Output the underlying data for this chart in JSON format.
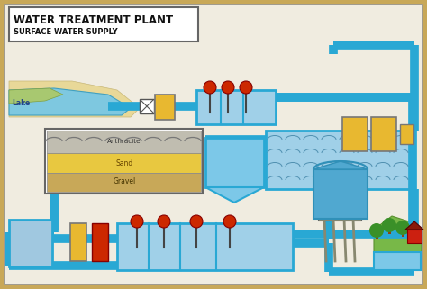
{
  "title": "WATER TREATMENT PLANT",
  "subtitle": "SURFACE WATER SUPPLY",
  "outer_bg": "#c8a858",
  "inner_bg": "#f0ece0",
  "pipe_color": "#29a8d4",
  "pipe_lw": 7,
  "lake_water": "#7ec8e0",
  "lake_bank_green": "#a8c870",
  "lake_sand": "#e8d898",
  "lake_label": "Lake",
  "filter_layers": [
    "Anthracite",
    "Sand",
    "Gravel"
  ],
  "anth_color": "#c0bdb0",
  "sand_color": "#e8c840",
  "gravel_color": "#c8a858",
  "blue_tank": "#7cc8e8",
  "blue_tank2": "#a0d0e8",
  "yel": "#e8b830",
  "red": "#cc2800",
  "text_dark": "#111111",
  "green_tree": "#3a9028",
  "green_hill": "#78b848",
  "house_red": "#cc2010",
  "water_tower_blue": "#50a8d0",
  "gray_leg": "#888870"
}
